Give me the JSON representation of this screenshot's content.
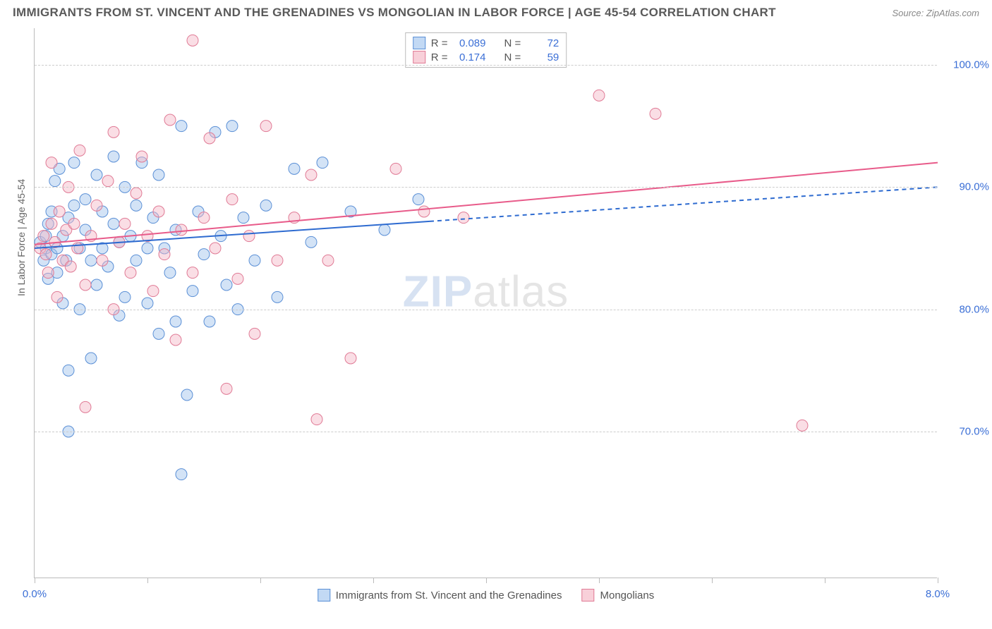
{
  "title": "IMMIGRANTS FROM ST. VINCENT AND THE GRENADINES VS MONGOLIAN IN LABOR FORCE | AGE 45-54 CORRELATION CHART",
  "source": "Source: ZipAtlas.com",
  "watermark_zip": "ZIP",
  "watermark_atlas": "atlas",
  "ylabel": "In Labor Force | Age 45-54",
  "chart": {
    "type": "scatter",
    "xlim": [
      0,
      8
    ],
    "ylim": [
      58,
      103
    ],
    "x_ticks": [
      0,
      1,
      2,
      3,
      4,
      5,
      6,
      7,
      8
    ],
    "x_tick_labels": {
      "0": "0.0%",
      "8": "8.0%"
    },
    "y_gridlines": [
      70,
      80,
      90,
      100
    ],
    "y_tick_labels": {
      "70": "70.0%",
      "80": "80.0%",
      "90": "90.0%",
      "100": "100.0%"
    },
    "background_color": "#ffffff",
    "grid_color": "#cccccc",
    "axis_color": "#bbbbbb",
    "tick_label_color": "#3b6fd6",
    "marker_radius": 8,
    "marker_opacity": 0.45,
    "series": [
      {
        "id": "svg_series",
        "label": "Immigrants from St. Vincent and the Grenadines",
        "fill_color": "#9dc1ec",
        "stroke_color": "#5a8fd6",
        "R": "0.089",
        "N": "72",
        "trend": {
          "x1": 0.0,
          "y1": 85.0,
          "x2_solid": 3.5,
          "y2_solid": 87.2,
          "x2_dash": 8.0,
          "y2_dash": 90.0,
          "color": "#2e6bd0",
          "width": 2
        },
        "points": [
          [
            0.05,
            85.5
          ],
          [
            0.08,
            84.0
          ],
          [
            0.1,
            85.0
          ],
          [
            0.1,
            86.0
          ],
          [
            0.12,
            82.5
          ],
          [
            0.12,
            87.0
          ],
          [
            0.15,
            84.5
          ],
          [
            0.15,
            88.0
          ],
          [
            0.18,
            90.5
          ],
          [
            0.2,
            85.0
          ],
          [
            0.2,
            83.0
          ],
          [
            0.22,
            91.5
          ],
          [
            0.25,
            80.5
          ],
          [
            0.25,
            86.0
          ],
          [
            0.28,
            84.0
          ],
          [
            0.3,
            87.5
          ],
          [
            0.3,
            75.0
          ],
          [
            0.3,
            70.0
          ],
          [
            0.35,
            88.5
          ],
          [
            0.35,
            92.0
          ],
          [
            0.4,
            85.0
          ],
          [
            0.4,
            80.0
          ],
          [
            0.45,
            86.5
          ],
          [
            0.45,
            89.0
          ],
          [
            0.5,
            84.0
          ],
          [
            0.5,
            76.0
          ],
          [
            0.55,
            91.0
          ],
          [
            0.55,
            82.0
          ],
          [
            0.6,
            88.0
          ],
          [
            0.6,
            85.0
          ],
          [
            0.65,
            83.5
          ],
          [
            0.7,
            87.0
          ],
          [
            0.7,
            92.5
          ],
          [
            0.75,
            85.5
          ],
          [
            0.75,
            79.5
          ],
          [
            0.8,
            90.0
          ],
          [
            0.8,
            81.0
          ],
          [
            0.85,
            86.0
          ],
          [
            0.9,
            88.5
          ],
          [
            0.9,
            84.0
          ],
          [
            0.95,
            92.0
          ],
          [
            1.0,
            85.0
          ],
          [
            1.0,
            80.5
          ],
          [
            1.05,
            87.5
          ],
          [
            1.1,
            78.0
          ],
          [
            1.1,
            91.0
          ],
          [
            1.15,
            85.0
          ],
          [
            1.2,
            83.0
          ],
          [
            1.25,
            79.0
          ],
          [
            1.25,
            86.5
          ],
          [
            1.3,
            66.5
          ],
          [
            1.3,
            95.0
          ],
          [
            1.35,
            73.0
          ],
          [
            1.4,
            81.5
          ],
          [
            1.45,
            88.0
          ],
          [
            1.5,
            84.5
          ],
          [
            1.55,
            79.0
          ],
          [
            1.6,
            94.5
          ],
          [
            1.65,
            86.0
          ],
          [
            1.7,
            82.0
          ],
          [
            1.75,
            95.0
          ],
          [
            1.8,
            80.0
          ],
          [
            1.85,
            87.5
          ],
          [
            1.95,
            84.0
          ],
          [
            2.05,
            88.5
          ],
          [
            2.15,
            81.0
          ],
          [
            2.3,
            91.5
          ],
          [
            2.45,
            85.5
          ],
          [
            2.55,
            92.0
          ],
          [
            2.8,
            88.0
          ],
          [
            3.1,
            86.5
          ],
          [
            3.4,
            89.0
          ]
        ]
      },
      {
        "id": "mongolian_series",
        "label": "Mongolians",
        "fill_color": "#f3b6c5",
        "stroke_color": "#e07a95",
        "R": "0.174",
        "N": "59",
        "trend": {
          "x1": 0.0,
          "y1": 85.3,
          "x2_solid": 8.0,
          "y2_solid": 92.0,
          "x2_dash": 8.0,
          "y2_dash": 92.0,
          "color": "#e85b8a",
          "width": 2
        },
        "points": [
          [
            0.05,
            85.0
          ],
          [
            0.08,
            86.0
          ],
          [
            0.1,
            84.5
          ],
          [
            0.12,
            83.0
          ],
          [
            0.15,
            87.0
          ],
          [
            0.15,
            92.0
          ],
          [
            0.18,
            85.5
          ],
          [
            0.2,
            81.0
          ],
          [
            0.22,
            88.0
          ],
          [
            0.25,
            84.0
          ],
          [
            0.28,
            86.5
          ],
          [
            0.3,
            90.0
          ],
          [
            0.32,
            83.5
          ],
          [
            0.35,
            87.0
          ],
          [
            0.38,
            85.0
          ],
          [
            0.4,
            93.0
          ],
          [
            0.45,
            82.0
          ],
          [
            0.45,
            72.0
          ],
          [
            0.5,
            86.0
          ],
          [
            0.55,
            88.5
          ],
          [
            0.6,
            84.0
          ],
          [
            0.65,
            90.5
          ],
          [
            0.7,
            80.0
          ],
          [
            0.7,
            94.5
          ],
          [
            0.75,
            85.5
          ],
          [
            0.8,
            87.0
          ],
          [
            0.85,
            83.0
          ],
          [
            0.9,
            89.5
          ],
          [
            0.95,
            92.5
          ],
          [
            1.0,
            86.0
          ],
          [
            1.05,
            81.5
          ],
          [
            1.1,
            88.0
          ],
          [
            1.15,
            84.5
          ],
          [
            1.2,
            95.5
          ],
          [
            1.25,
            77.5
          ],
          [
            1.3,
            86.5
          ],
          [
            1.4,
            102.0
          ],
          [
            1.4,
            83.0
          ],
          [
            1.5,
            87.5
          ],
          [
            1.55,
            94.0
          ],
          [
            1.6,
            85.0
          ],
          [
            1.7,
            73.5
          ],
          [
            1.75,
            89.0
          ],
          [
            1.8,
            82.5
          ],
          [
            1.9,
            86.0
          ],
          [
            1.95,
            78.0
          ],
          [
            2.05,
            95.0
          ],
          [
            2.15,
            84.0
          ],
          [
            2.3,
            87.5
          ],
          [
            2.45,
            91.0
          ],
          [
            2.5,
            71.0
          ],
          [
            2.6,
            84.0
          ],
          [
            2.8,
            76.0
          ],
          [
            3.2,
            91.5
          ],
          [
            3.45,
            88.0
          ],
          [
            3.8,
            87.5
          ],
          [
            5.0,
            97.5
          ],
          [
            5.5,
            96.0
          ],
          [
            6.8,
            70.5
          ]
        ]
      }
    ]
  },
  "legend_top": {
    "label_R": "R =",
    "label_N": "N ="
  },
  "legend_bottom": {
    "label1": "Immigrants from St. Vincent and the Grenadines",
    "label2": "Mongolians"
  }
}
